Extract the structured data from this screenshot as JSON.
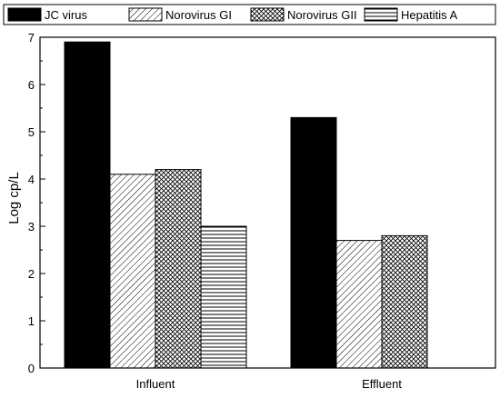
{
  "chart_data": {
    "type": "bar",
    "ylabel": "Log cp/L",
    "xlabel": "",
    "ylim": [
      0,
      7
    ],
    "yticks": [
      0,
      1,
      2,
      3,
      4,
      5,
      6,
      7
    ],
    "categories": [
      "Influent",
      "Effluent"
    ],
    "legend": {
      "placement": "top"
    },
    "grid": false,
    "series": [
      {
        "name": "JC virus",
        "pattern": "solid",
        "color": "#000000",
        "values": [
          6.9,
          5.3
        ]
      },
      {
        "name": "Norovirus GI",
        "pattern": "diagonal-hatch",
        "values": [
          4.1,
          2.7
        ]
      },
      {
        "name": "Norovirus GII",
        "pattern": "crosshatch",
        "values": [
          4.2,
          2.8
        ]
      },
      {
        "name": "Hepatitis A",
        "pattern": "horizontal-lines",
        "values": [
          3.0,
          null
        ]
      }
    ]
  }
}
